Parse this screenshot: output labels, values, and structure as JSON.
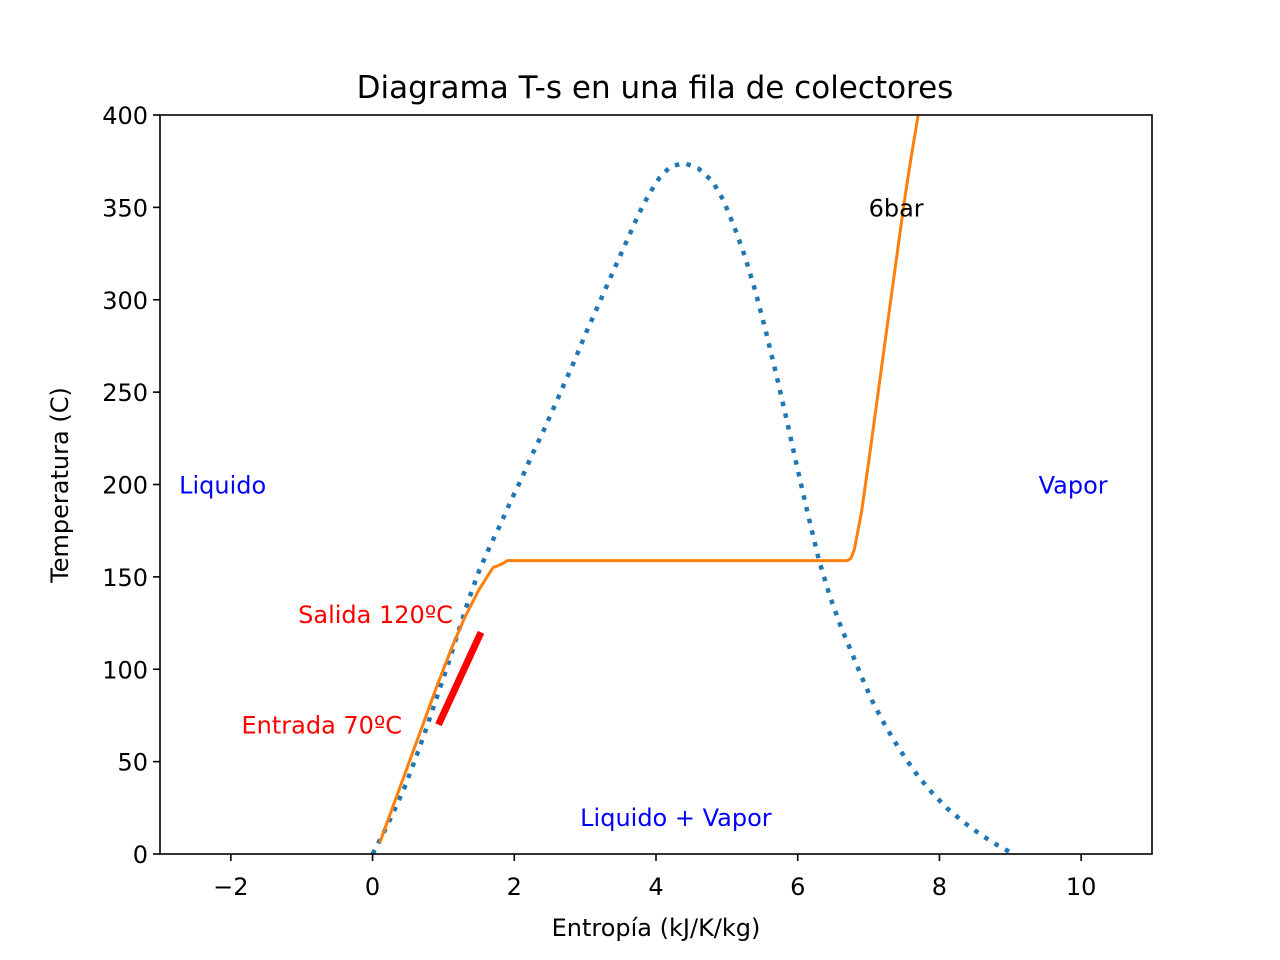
{
  "chart_data": {
    "type": "line",
    "title": "Diagrama T-s en una fila de colectores",
    "xlabel": "Entropía (kJ/K/kg)",
    "ylabel": "Temperatura (C)",
    "xlim": [
      -3,
      11
    ],
    "ylim": [
      0,
      400
    ],
    "xticks": [
      -2,
      0,
      2,
      4,
      6,
      8,
      10
    ],
    "xtick_labels": [
      "−2",
      "0",
      "2",
      "4",
      "6",
      "8",
      "10"
    ],
    "yticks": [
      0,
      50,
      100,
      150,
      200,
      250,
      300,
      350,
      400
    ],
    "ytick_labels": [
      "0",
      "50",
      "100",
      "150",
      "200",
      "250",
      "300",
      "350",
      "400"
    ],
    "grid": false,
    "colors": {
      "saturation": "#1f77b4",
      "isobar": "#ff7f0e",
      "process": "#ff0000",
      "region_label": "#0000ff",
      "process_label": "#ff0000",
      "isobar_label": "#000000"
    },
    "series": [
      {
        "name": "saturation dome",
        "style": "dotted",
        "x": [
          0.0,
          0.15,
          0.3,
          0.45,
          0.6,
          0.75,
          0.9,
          1.05,
          1.2,
          1.35,
          1.5,
          1.65,
          1.8,
          1.95,
          2.1,
          2.25,
          2.4,
          2.55,
          2.7,
          2.85,
          3.0,
          3.15,
          3.3,
          3.45,
          3.6,
          3.75,
          3.9,
          4.05,
          4.2,
          4.4,
          4.6,
          4.8,
          4.95,
          5.1,
          5.25,
          5.4,
          5.55,
          5.7,
          5.85,
          6.0,
          6.15,
          6.3,
          6.45,
          6.6,
          6.75,
          6.9,
          7.05,
          7.2,
          7.35,
          7.5,
          7.7,
          7.9,
          8.1,
          8.35,
          8.6,
          8.85,
          9.05
        ],
        "y": [
          0,
          11,
          23,
          36,
          51,
          67,
          84,
          101,
          119,
          137,
          153,
          166,
          178,
          191,
          203,
          216,
          228,
          241,
          254,
          267,
          281,
          294,
          307,
          320,
          333,
          346,
          357,
          366,
          372,
          374,
          371,
          364,
          354,
          340,
          324,
          305,
          283,
          259,
          234,
          208,
          183,
          159,
          140,
          124,
          110,
          96,
          83,
          72,
          62,
          53,
          42,
          33,
          25,
          17,
          10,
          4,
          0
        ]
      },
      {
        "name": "6bar",
        "style": "solid",
        "x": [
          0.1,
          0.3,
          0.5,
          0.7,
          0.9,
          1.1,
          1.3,
          1.5,
          1.7,
          1.83,
          1.9,
          2.0,
          3.0,
          4.0,
          5.0,
          6.0,
          6.7,
          6.75,
          6.8,
          6.9,
          7.0,
          7.1,
          7.2,
          7.3,
          7.4,
          7.5,
          7.6,
          7.7
        ],
        "y": [
          6,
          27,
          48,
          69,
          90,
          110,
          128,
          143,
          155,
          157,
          158.8,
          158.8,
          158.8,
          158.8,
          158.8,
          158.8,
          158.8,
          160,
          165,
          185,
          212,
          240,
          268,
          296,
          324,
          352,
          377,
          400
        ]
      },
      {
        "name": "colector",
        "style": "thick",
        "x": [
          0.93,
          1.53
        ],
        "y": [
          70,
          120
        ]
      }
    ],
    "annotations": [
      {
        "text": "6bar",
        "x": 7.0,
        "y": 350,
        "color": "#000000"
      },
      {
        "text": "Liquido",
        "x": -2.73,
        "y": 200,
        "color": "#0000ff"
      },
      {
        "text": "Vapor",
        "x": 9.4,
        "y": 200,
        "color": "#0000ff"
      },
      {
        "text": "Liquido + Vapor",
        "x": 2.93,
        "y": 20,
        "color": "#0000ff"
      },
      {
        "text": "Salida 120ºC",
        "x": -1.05,
        "y": 130,
        "color": "#ff0000"
      },
      {
        "text": "Entrada 70ºC",
        "x": -1.85,
        "y": 70,
        "color": "#ff0000"
      }
    ]
  }
}
